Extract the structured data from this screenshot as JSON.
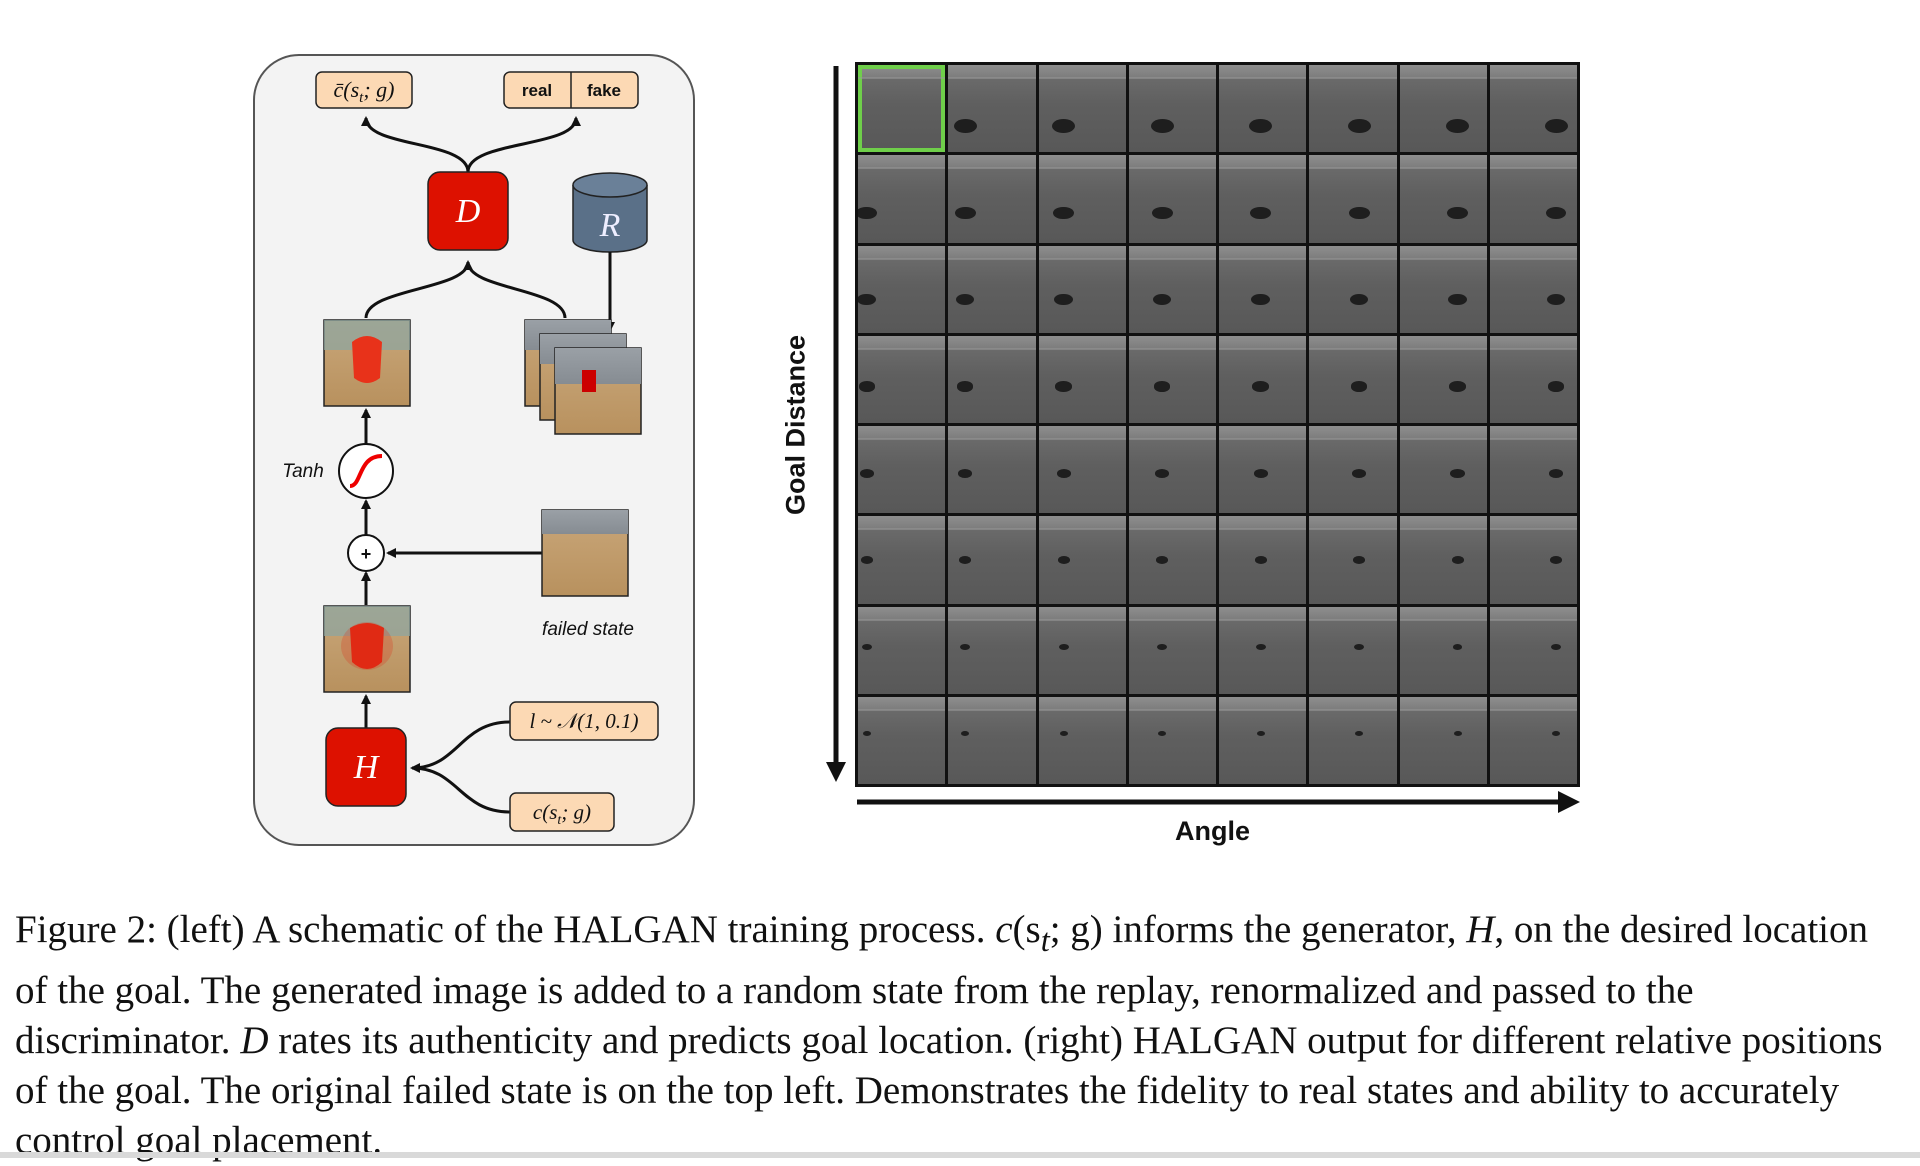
{
  "schematic": {
    "nodes": {
      "c_bar": "c̄(s",
      "c_bar_sub": "t",
      "c_bar_rest": "; g)",
      "real": "real",
      "fake": "fake",
      "D": "D",
      "R": "R",
      "H": "H",
      "tanh": "Tanh",
      "plus": "+",
      "failed_state": "failed state",
      "noise_l": "l ~ 𝒩(1, 0.1)",
      "c_label": "c(s",
      "c_label_sub": "t",
      "c_label_rest": "; g)"
    },
    "colors": {
      "network_red": "#dd1100",
      "replay_blue": "#5a7088",
      "label_box": "#fcd9b4",
      "panel_bg": "#f3f3f3"
    }
  },
  "grid": {
    "rows": 8,
    "cols": 8,
    "y_axis_label": "Goal Distance",
    "x_axis_label": "Angle",
    "highlight_cell": [
      0,
      0
    ],
    "highlight_color": "#6fcf4a"
  },
  "caption": {
    "figure_label": "Figure 2:",
    "part1": " (left) A schematic of the HALGAN training process. ",
    "math_c": "c",
    "math_open": "(s",
    "math_sub": "t",
    "math_close": "; g)",
    "part2": " informs the generator, ",
    "math_H": "H",
    "part3": ", on the desired location of the goal. The generated image is added to a random state from the replay, renormalized and passed to the discriminator. ",
    "math_D": "D",
    "part4": " rates its authenticity and predicts goal location. (right) HALGAN output for different relative positions of the goal. The original failed state is on the top left. Demonstrates the fidelity to real states and ability to accurately control goal placement."
  }
}
